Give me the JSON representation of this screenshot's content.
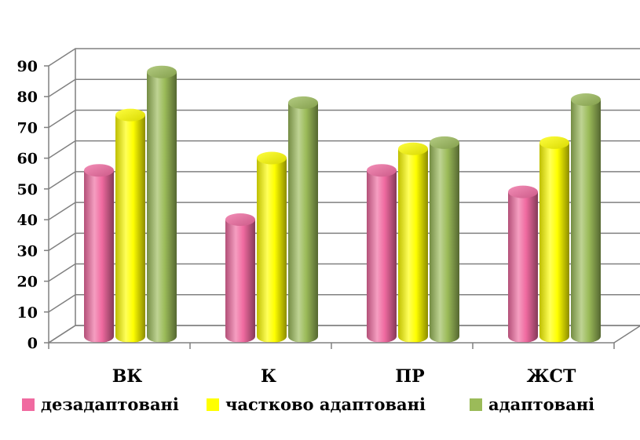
{
  "chart_data": {
    "type": "bar",
    "title": "",
    "xlabel": "",
    "ylabel": "",
    "categories": [
      "ВК",
      "К",
      "ПР",
      "ЖСТ"
    ],
    "series": [
      {
        "name": "дезадаптовані",
        "values": [
          54,
          38,
          54,
          47
        ],
        "color": "#f06aa0"
      },
      {
        "name": "частково адаптовані",
        "values": [
          72,
          58,
          61,
          63
        ],
        "color": "#ffff00"
      },
      {
        "name": "адаптовані",
        "values": [
          86,
          76,
          63,
          77
        ],
        "color": "#9bbb59"
      }
    ],
    "y_ticks": [
      "0",
      "10",
      "20",
      "30",
      "40",
      "50",
      "60",
      "70",
      "80",
      "90"
    ],
    "ylim": [
      0,
      90
    ],
    "grid": true,
    "legend_position": "bottom",
    "style": "3d-cylinder"
  }
}
